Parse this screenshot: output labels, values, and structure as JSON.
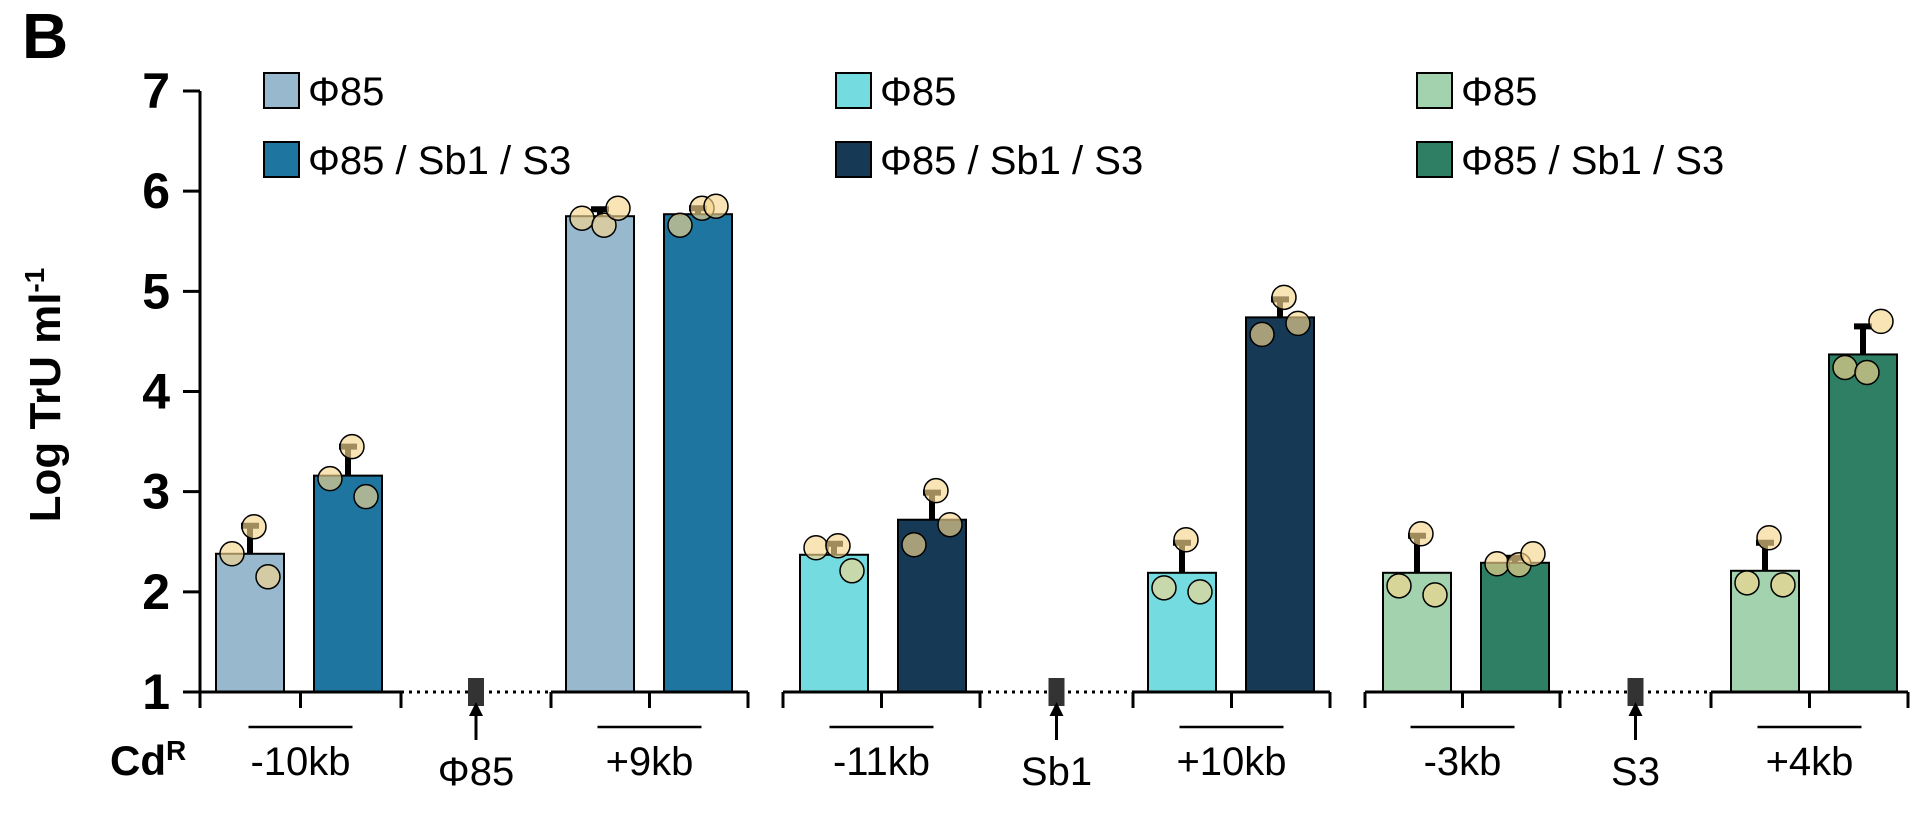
{
  "panel_label": "B",
  "chart_data": {
    "type": "bar",
    "ylabel": "Log TrU ml",
    "ylabel_superscript": "-1",
    "ylim": [
      1,
      7
    ],
    "yticks": [
      "1",
      "2",
      "3",
      "4",
      "5",
      "6",
      "7"
    ],
    "row_label": "Cd",
    "row_label_superscript": "R",
    "legend_columns": [
      {
        "entries": [
          {
            "label": "Φ85",
            "color": "#98B8CD"
          },
          {
            "label": "Φ85 / Sb1 / S3",
            "color": "#1E76A0"
          }
        ]
      },
      {
        "entries": [
          {
            "label": "Φ85",
            "color": "#74DCE0"
          },
          {
            "label": "Φ85 / Sb1 / S3",
            "color": "#163A56"
          }
        ]
      },
      {
        "entries": [
          {
            "label": "Φ85",
            "color": "#A3D3AE"
          },
          {
            "label": "Φ85 / Sb1 / S3",
            "color": "#2E7F63"
          }
        ]
      }
    ],
    "groups": [
      {
        "category": "-10kb",
        "bars": [
          {
            "series": 0,
            "value": 2.38,
            "err": 0.28,
            "points": [
              2.38,
              2.65,
              2.15
            ],
            "color": "#98B8CD"
          },
          {
            "series": 1,
            "value": 3.16,
            "err": 0.29,
            "points": [
              3.13,
              3.45,
              2.95
            ],
            "color": "#1E76A0"
          }
        ]
      },
      {
        "category": "+9kb",
        "bars": [
          {
            "series": 0,
            "value": 5.75,
            "err": 0.07,
            "points": [
              5.73,
              5.66,
              5.83
            ],
            "color": "#98B8CD"
          },
          {
            "series": 1,
            "value": 5.77,
            "err": 0.06,
            "points": [
              5.66,
              5.83,
              5.85
            ],
            "color": "#1E76A0"
          }
        ]
      },
      {
        "category": "-11kb",
        "bars": [
          {
            "series": 0,
            "value": 2.37,
            "err": 0.11,
            "points": [
              2.44,
              2.46,
              2.21
            ],
            "color": "#74DCE0"
          },
          {
            "series": 1,
            "value": 2.72,
            "err": 0.27,
            "points": [
              2.47,
              3.01,
              2.67
            ],
            "color": "#163A56"
          }
        ]
      },
      {
        "category": "+10kb",
        "bars": [
          {
            "series": 0,
            "value": 2.19,
            "err": 0.3,
            "points": [
              2.04,
              2.52,
              2.0
            ],
            "color": "#74DCE0"
          },
          {
            "series": 1,
            "value": 4.74,
            "err": 0.18,
            "points": [
              4.57,
              4.94,
              4.68
            ],
            "color": "#163A56"
          }
        ]
      },
      {
        "category": "-3kb",
        "bars": [
          {
            "series": 0,
            "value": 2.19,
            "err": 0.37,
            "points": [
              2.06,
              2.58,
              1.97
            ],
            "color": "#A3D3AE"
          },
          {
            "series": 1,
            "value": 2.29,
            "err": 0.05,
            "points": [
              2.28,
              2.27,
              2.38
            ],
            "color": "#2E7F63"
          }
        ]
      },
      {
        "category": "+4kb",
        "bars": [
          {
            "series": 0,
            "value": 2.21,
            "err": 0.28,
            "points": [
              2.09,
              2.54,
              2.07
            ],
            "color": "#A3D3AE"
          },
          {
            "series": 1,
            "value": 4.37,
            "err": 0.28,
            "points": [
              4.24,
              4.19,
              4.7
            ],
            "color": "#2E7F63"
          }
        ]
      }
    ],
    "markers": [
      {
        "label": "Φ85"
      },
      {
        "label": "Sb1"
      },
      {
        "label": "S3"
      }
    ],
    "point_color": "#F5D58E",
    "legend_placement": "top",
    "grid": false
  }
}
